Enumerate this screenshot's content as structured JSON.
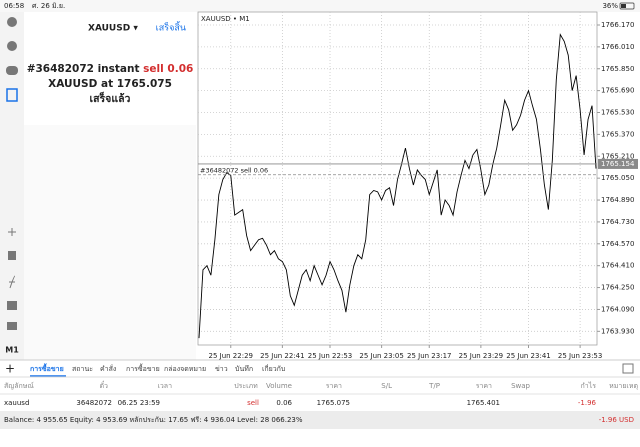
{
  "status_bar": {
    "time": "06:58",
    "date": "ศ. 26 มิ.ย.",
    "battery": "36%"
  },
  "order_panel": {
    "symbol": "XAUUSD ▾",
    "done_button": "เสร็จสิ้น",
    "order_prefix": "#36482072 instant",
    "order_action": "sell 0.06",
    "order_price": "XAUUSD at 1765.075",
    "status": "เสร็จแล้ว"
  },
  "sidebar": {
    "timeframe": "M1"
  },
  "chart_data": {
    "type": "line",
    "title": "XAUUSD • M1",
    "categories": [
      null,
      null,
      null,
      null,
      null,
      null,
      null,
      null,
      "25 Jun 22:29",
      null,
      null,
      null,
      null,
      null,
      null,
      null,
      null,
      null,
      null,
      null,
      null,
      "25 Jun 22:41",
      null,
      null,
      null,
      null,
      null,
      null,
      null,
      null,
      null,
      null,
      null,
      "25 Jun 22:53",
      null,
      null,
      null,
      null,
      null,
      null,
      null,
      null,
      null,
      null,
      null,
      null,
      "25 Jun 23:05",
      null,
      null,
      null,
      null,
      null,
      null,
      null,
      null,
      null,
      null,
      null,
      "25 Jun 23:17",
      null,
      null,
      null,
      null,
      null,
      null,
      null,
      null,
      null,
      null,
      null,
      null,
      "25 Jun 23:29",
      null,
      null,
      null,
      null,
      null,
      null,
      null,
      null,
      null,
      null,
      null,
      "25 Jun 23:41",
      null,
      null,
      null,
      null,
      null,
      null,
      null,
      null,
      null,
      null,
      null,
      null,
      "25 Jun 23:53",
      null,
      null,
      null,
      null
    ],
    "values": [
      1763.88,
      1764.38,
      1764.41,
      1764.34,
      1764.6,
      1764.93,
      1765.04,
      1765.09,
      1765.07,
      1764.78,
      1764.8,
      1764.82,
      1764.63,
      1764.52,
      1764.56,
      1764.6,
      1764.61,
      1764.56,
      1764.49,
      1764.52,
      1764.46,
      1764.44,
      1764.38,
      1764.19,
      1764.12,
      1764.23,
      1764.34,
      1764.38,
      1764.3,
      1764.41,
      1764.34,
      1764.27,
      1764.34,
      1764.44,
      1764.38,
      1764.3,
      1764.23,
      1764.07,
      1764.27,
      1764.41,
      1764.49,
      1764.46,
      1764.6,
      1764.93,
      1764.96,
      1764.95,
      1764.89,
      1764.96,
      1764.98,
      1764.85,
      1765.04,
      1765.15,
      1765.27,
      1765.12,
      1765.0,
      1765.11,
      1765.07,
      1765.04,
      1764.93,
      1765.02,
      1765.11,
      1764.78,
      1764.89,
      1764.85,
      1764.78,
      1764.95,
      1765.07,
      1765.18,
      1765.12,
      1765.22,
      1765.26,
      1765.11,
      1764.93,
      1765.0,
      1765.15,
      1765.27,
      1765.44,
      1765.62,
      1765.55,
      1765.4,
      1765.44,
      1765.51,
      1765.62,
      1765.69,
      1765.58,
      1765.48,
      1765.26,
      1765.0,
      1764.82,
      1765.18,
      1765.77,
      1766.1,
      1766.05,
      1765.95,
      1765.69,
      1765.8,
      1765.55,
      1765.22,
      1765.48,
      1765.58,
      1765.12
    ],
    "color": "#000000",
    "ylim": [
      1763.83,
      1766.265
    ],
    "yticks": [
      {
        "value": 1763.93,
        "label": "1763.930"
      },
      {
        "value": 1764.09,
        "label": "1764.090"
      },
      {
        "value": 1764.25,
        "label": "1764.250"
      },
      {
        "value": 1764.41,
        "label": "1764.410"
      },
      {
        "value": 1764.57,
        "label": "1764.570"
      },
      {
        "value": 1764.73,
        "label": "1764.730"
      },
      {
        "value": 1764.89,
        "label": "1764.890"
      },
      {
        "value": 1765.05,
        "label": "1765.050"
      },
      {
        "value": 1765.21,
        "label": "1765.210"
      },
      {
        "value": 1765.37,
        "label": "1765.370"
      },
      {
        "value": 1765.53,
        "label": "1765.530"
      },
      {
        "value": 1765.69,
        "label": "1765.690"
      },
      {
        "value": 1765.85,
        "label": "1765.850"
      },
      {
        "value": 1766.01,
        "label": "1766.010"
      },
      {
        "value": 1766.17,
        "label": "1766.170"
      }
    ],
    "grid": true,
    "bid": 1765.154,
    "order_line": {
      "label": "#36482072 sell 0.06",
      "value": 1765.075
    }
  },
  "tabs": [
    "การซื้อขาย",
    "สถานะ",
    "คำสั่ง",
    "การซื้อขาย",
    "กล่องจดหมาย",
    "ข่าว",
    "บันทึก",
    "เกี่ยวกับ"
  ],
  "table": {
    "headers": [
      "สัญลักษณ์",
      "ตั๋ว",
      "เวลา",
      "ประเภท",
      "Volume",
      "ราคา",
      "S/L",
      "T/P",
      "ราคา",
      "Swap",
      "กำไร",
      "หมายเหตุ"
    ],
    "row": {
      "symbol": "xauusd",
      "ticket": "36482072",
      "time": "06.25 23:59",
      "type": "sell",
      "volume": "0.06",
      "price": "1765.075",
      "current_price": "1765.401",
      "profit": "-1.96"
    }
  },
  "footer": {
    "summary": "Balance: 4 955.65 Equity: 4 953.69 หลักประกัน: 17.65 ฟรี: 4 936.04 Level: 28 066.23%",
    "profit": "-1.96  USD"
  }
}
